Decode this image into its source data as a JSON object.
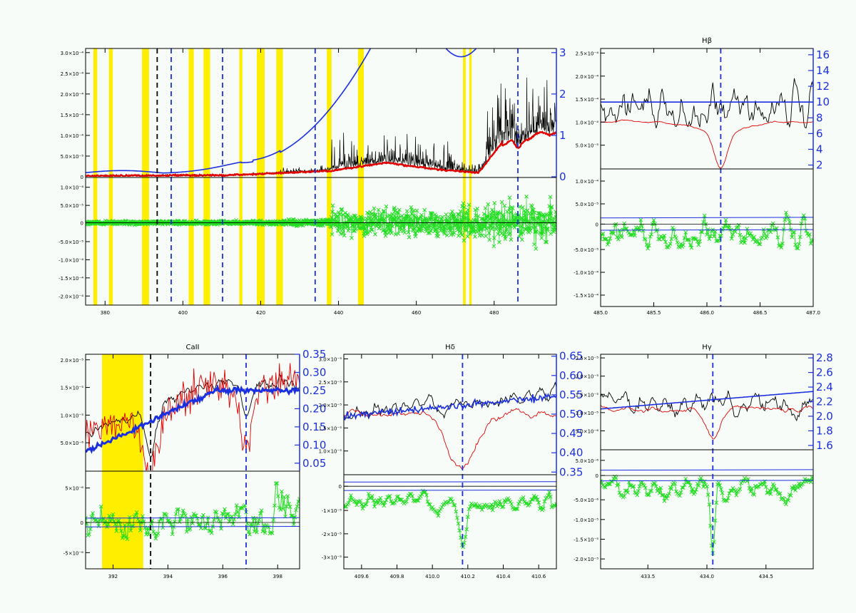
{
  "colors": {
    "background": "#f8fcf8",
    "observed": "#000000",
    "model": "#e00000",
    "residual": "#22dd22",
    "continuum": "#1a2fe0",
    "line_marker": "#1a2fe0",
    "mask": "#ffee00"
  },
  "chart_data": [
    {
      "id": "full",
      "type": "line",
      "title": "",
      "x_ticks": [
        "380",
        "400",
        "420",
        "440",
        "460",
        "480"
      ],
      "xlim": [
        375,
        496
      ],
      "top": {
        "y_ticks": [
          "5.0×10⁻⁵",
          "1.0×10⁻⁴",
          "1.5×10⁻⁴",
          "2.0×10⁻⁴",
          "2.5×10⁻⁴",
          "3.0×10⁻⁴"
        ],
        "ylim": [
          0,
          0.00031
        ],
        "right_ticks": [
          "0",
          "1",
          "2",
          "3"
        ],
        "right_lim": [
          0,
          3.1
        ]
      },
      "bottom": {
        "y_ticks": [
          "-2.0×10⁻⁴",
          "-1.5×10⁻⁴",
          "-1.0×10⁻⁴",
          "-5.0×10⁻⁵",
          "0",
          "5.0×10⁻⁵",
          "1.0×10⁻⁴"
        ],
        "ylim": [
          -0.0002,
          0.000108
        ]
      },
      "mask_bands": [
        [
          377,
          378
        ],
        [
          381,
          382
        ],
        [
          389.5,
          391.3
        ],
        [
          401.5,
          402.8
        ],
        [
          405.3,
          407
        ],
        [
          414.5,
          415.3
        ],
        [
          419,
          421
        ],
        [
          424,
          425.7
        ],
        [
          437,
          438.2
        ],
        [
          445,
          446.5
        ],
        [
          472,
          472.7
        ],
        [
          473.6,
          474.2
        ]
      ],
      "line_markers": [
        393.4,
        397.0,
        410.2,
        434.0,
        486.1
      ],
      "black_markers": [
        393.4
      ]
    },
    {
      "id": "hb",
      "type": "line",
      "title": "Hβ",
      "x_ticks": [
        "485.0",
        "485.5",
        "486.0",
        "486.5",
        "487.0"
      ],
      "xlim": [
        485.0,
        487.0
      ],
      "top": {
        "y_ticks": [
          "5.0×10⁻⁵",
          "1.0×10⁻⁴",
          "1.5×10⁻⁴",
          "2.0×10⁻⁴",
          "2.5×10⁻⁴"
        ],
        "ylim": [
          3e-05,
          0.00026
        ],
        "right_ticks": [
          "2",
          "4",
          "6",
          "8",
          "10",
          "12",
          "14",
          "16"
        ],
        "right_lim": [
          1.6,
          16.8
        ]
      },
      "bottom": {
        "y_ticks": [
          "-1.5×10⁻⁴",
          "-1.0×10⁻⁴",
          "-5.0×10⁻⁵",
          "0",
          "5.0×10⁻⁵",
          "1.0×10⁻⁴"
        ],
        "ylim": [
          -0.000162,
          0.000107
        ]
      },
      "line_markers": [
        486.13
      ]
    },
    {
      "id": "caii",
      "type": "line",
      "title": "CaII",
      "x_ticks": [
        "392",
        "394",
        "396",
        "398"
      ],
      "xlim": [
        391.0,
        398.8
      ],
      "top": {
        "y_ticks": [
          "5.0×10⁻⁶",
          "1.0×10⁻⁵",
          "1.5×10⁻⁵",
          "2.0×10⁻⁵"
        ],
        "ylim": [
          1.7e-06,
          2.22e-05
        ],
        "right_ticks": [
          "0.05",
          "0.10",
          "0.15",
          "0.20",
          "0.25",
          "0.30",
          "0.35"
        ],
        "right_lim": [
          0.03,
          0.35
        ]
      },
      "bottom": {
        "y_ticks": [
          "-5×10⁻⁶",
          "0",
          "5×10⁻⁶"
        ],
        "ylim": [
          -8.7e-06,
          9.5e-06
        ]
      },
      "mask_bands": [
        [
          391.6,
          393.1
        ]
      ],
      "line_markers": [
        393.37,
        396.85
      ],
      "black_markers": [
        393.37
      ]
    },
    {
      "id": "hd",
      "type": "line",
      "title": "Hδ",
      "x_ticks": [
        "409.6",
        "409.8",
        "410.0",
        "410.2",
        "410.4",
        "410.6"
      ],
      "xlim": [
        409.5,
        410.7
      ],
      "top": {
        "y_ticks": [
          "1.0×10⁻⁵",
          "1.5×10⁻⁵",
          "2.0×10⁻⁵",
          "2.5×10⁻⁵",
          "3.0×10⁻⁵"
        ],
        "ylim": [
          7.5e-06,
          3.4e-05
        ],
        "right_ticks": [
          "0.35",
          "0.40",
          "0.45",
          "0.50",
          "0.55",
          "0.60",
          "0.65"
        ],
        "right_lim": [
          0.345,
          0.655
        ]
      },
      "bottom": {
        "y_ticks": [
          "-3×10⁻⁵",
          "-2×10⁻⁵",
          "-1×10⁻⁵",
          "0"
        ],
        "ylim": [
          -3.05e-05,
          4e-06
        ]
      },
      "line_markers": [
        410.17
      ]
    },
    {
      "id": "hg",
      "type": "line",
      "title": "Hγ",
      "x_ticks": [
        "433.5",
        "434.0",
        "434.5"
      ],
      "xlim": [
        433.1,
        434.9
      ],
      "top": {
        "y_ticks": [
          "5.0×10⁻⁶",
          "1.0×10⁻⁵",
          "1.5×10⁻⁵",
          "2.0×10⁻⁵",
          "2.5×10⁻⁵"
        ],
        "ylim": [
          4e-06,
          2.65e-05
        ],
        "right_ticks": [
          "1.6",
          "1.8",
          "2.0",
          "2.2",
          "2.4",
          "2.6",
          "2.8"
        ],
        "right_lim": [
          1.55,
          2.85
        ]
      },
      "bottom": {
        "y_ticks": [
          "-2.0×10⁻⁵",
          "-1.5×10⁻⁵",
          "-1.0×10⁻⁵",
          "-5.0×10⁻⁶",
          "0",
          "5.0×10⁻⁶"
        ],
        "ylim": [
          -2.05e-05,
          5.5e-06
        ]
      },
      "line_markers": [
        434.05
      ]
    }
  ]
}
